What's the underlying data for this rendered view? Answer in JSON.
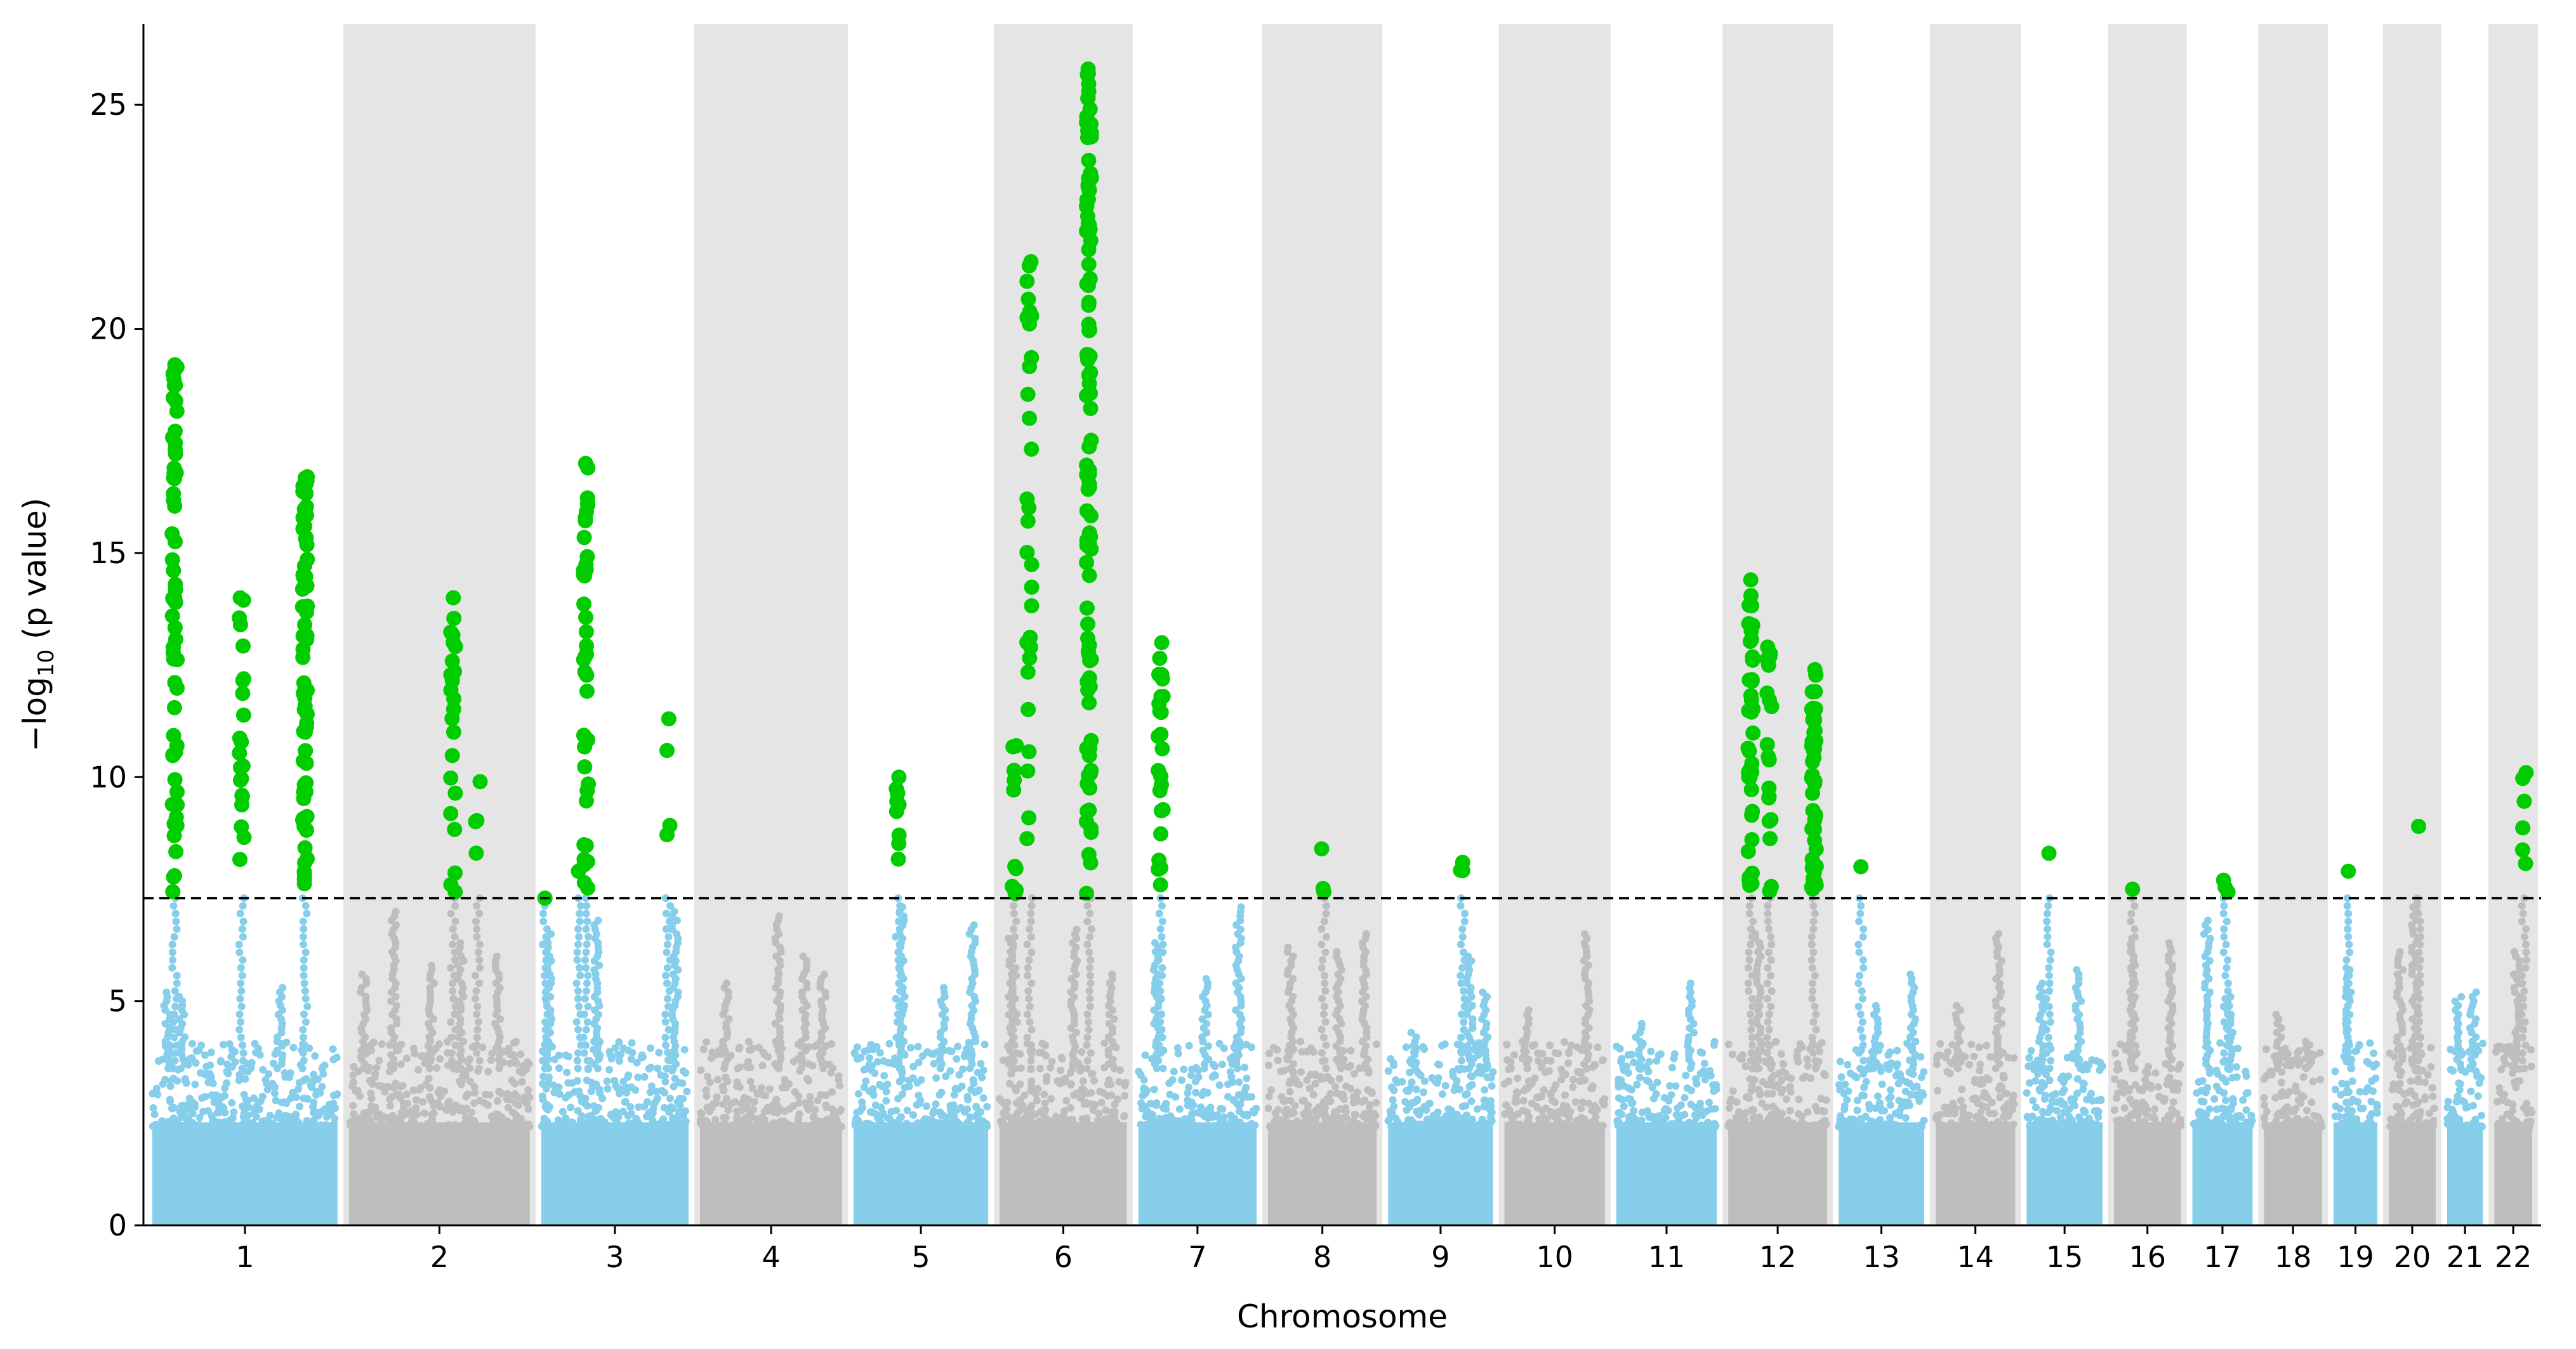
{
  "chart_data": {
    "type": "scatter",
    "subtype": "manhattan",
    "xlabel": "Chromosome",
    "ylabel_prefix": "−log",
    "ylabel_sub": "10",
    "ylabel_suffix": " (p value)",
    "ylim": [
      0,
      26.8
    ],
    "yticks": [
      0,
      5,
      10,
      15,
      20,
      25
    ],
    "significance_threshold": 7.3,
    "grid": false,
    "legend": "none",
    "colors": {
      "odd_chromosome_points": "#87ceeb",
      "even_chromosome_points": "#bebebe",
      "significant_points": "#00cc00",
      "shaded_band": "#e5e5e5",
      "threshold_line": "#000000"
    },
    "chromosomes": [
      {
        "label": "1",
        "length": 249,
        "shaded": false
      },
      {
        "label": "2",
        "length": 243,
        "shaded": true
      },
      {
        "label": "3",
        "length": 198,
        "shaded": false
      },
      {
        "label": "4",
        "length": 191,
        "shaded": true
      },
      {
        "label": "5",
        "length": 181,
        "shaded": false
      },
      {
        "label": "6",
        "length": 171,
        "shaded": true
      },
      {
        "label": "7",
        "length": 159,
        "shaded": false
      },
      {
        "label": "8",
        "length": 146,
        "shaded": true
      },
      {
        "label": "9",
        "length": 141,
        "shaded": false
      },
      {
        "label": "10",
        "length": 135,
        "shaded": true
      },
      {
        "label": "11",
        "length": 135,
        "shaded": false
      },
      {
        "label": "12",
        "length": 133,
        "shaded": true
      },
      {
        "label": "13",
        "length": 115,
        "shaded": false
      },
      {
        "label": "14",
        "length": 107,
        "shaded": true
      },
      {
        "label": "15",
        "length": 102,
        "shaded": false
      },
      {
        "label": "16",
        "length": 90,
        "shaded": true
      },
      {
        "label": "17",
        "length": 81,
        "shaded": false
      },
      {
        "label": "18",
        "length": 78,
        "shaded": true
      },
      {
        "label": "19",
        "length": 59,
        "shaded": false
      },
      {
        "label": "20",
        "length": 63,
        "shaded": true
      },
      {
        "label": "21",
        "length": 48,
        "shaded": false
      },
      {
        "label": "22",
        "length": 51,
        "shaded": true
      }
    ],
    "background_peaks": [
      {
        "chr": "1",
        "pos": 20,
        "y": 5.2
      },
      {
        "chr": "1",
        "pos": 40,
        "y": 5.1
      },
      {
        "chr": "1",
        "pos": 172,
        "y": 5.3
      },
      {
        "chr": "2",
        "pos": 20,
        "y": 5.6
      },
      {
        "chr": "2",
        "pos": 60,
        "y": 7.0
      },
      {
        "chr": "2",
        "pos": 110,
        "y": 5.8
      },
      {
        "chr": "2",
        "pos": 150,
        "y": 6.3
      },
      {
        "chr": "2",
        "pos": 200,
        "y": 6.0
      },
      {
        "chr": "3",
        "pos": 10,
        "y": 6.5
      },
      {
        "chr": "3",
        "pos": 75,
        "y": 6.8
      },
      {
        "chr": "3",
        "pos": 180,
        "y": 7.0
      },
      {
        "chr": "4",
        "pos": 35,
        "y": 5.4
      },
      {
        "chr": "4",
        "pos": 105,
        "y": 6.9
      },
      {
        "chr": "4",
        "pos": 140,
        "y": 6.0
      },
      {
        "chr": "4",
        "pos": 165,
        "y": 5.6
      },
      {
        "chr": "5",
        "pos": 65,
        "y": 7.1
      },
      {
        "chr": "5",
        "pos": 160,
        "y": 6.7
      },
      {
        "chr": "5",
        "pos": 120,
        "y": 5.3
      },
      {
        "chr": "6",
        "pos": 15,
        "y": 6.4
      },
      {
        "chr": "6",
        "pos": 100,
        "y": 6.6
      },
      {
        "chr": "6",
        "pos": 150,
        "y": 5.6
      },
      {
        "chr": "7",
        "pos": 25,
        "y": 6.3
      },
      {
        "chr": "7",
        "pos": 90,
        "y": 5.5
      },
      {
        "chr": "7",
        "pos": 135,
        "y": 7.1
      },
      {
        "chr": "8",
        "pos": 30,
        "y": 6.2
      },
      {
        "chr": "8",
        "pos": 95,
        "y": 6.1
      },
      {
        "chr": "8",
        "pos": 130,
        "y": 6.5
      },
      {
        "chr": "9",
        "pos": 35,
        "y": 4.3
      },
      {
        "chr": "9",
        "pos": 110,
        "y": 6.0
      },
      {
        "chr": "9",
        "pos": 130,
        "y": 5.2
      },
      {
        "chr": "10",
        "pos": 30,
        "y": 4.8
      },
      {
        "chr": "10",
        "pos": 110,
        "y": 6.5
      },
      {
        "chr": "11",
        "pos": 30,
        "y": 4.5
      },
      {
        "chr": "11",
        "pos": 100,
        "y": 5.4
      },
      {
        "chr": "12",
        "pos": 40,
        "y": 6.5
      },
      {
        "chr": "13",
        "pos": 50,
        "y": 4.9
      },
      {
        "chr": "13",
        "pos": 100,
        "y": 5.6
      },
      {
        "chr": "14",
        "pos": 30,
        "y": 4.9
      },
      {
        "chr": "14",
        "pos": 85,
        "y": 6.5
      },
      {
        "chr": "15",
        "pos": 20,
        "y": 5.4
      },
      {
        "chr": "15",
        "pos": 70,
        "y": 5.7
      },
      {
        "chr": "16",
        "pos": 25,
        "y": 6.4
      },
      {
        "chr": "16",
        "pos": 75,
        "y": 6.3
      },
      {
        "chr": "17",
        "pos": 20,
        "y": 6.8
      },
      {
        "chr": "17",
        "pos": 50,
        "y": 5.1
      },
      {
        "chr": "18",
        "pos": 20,
        "y": 4.7
      },
      {
        "chr": "18",
        "pos": 60,
        "y": 4.1
      },
      {
        "chr": "19",
        "pos": 20,
        "y": 5.7
      },
      {
        "chr": "20",
        "pos": 15,
        "y": 6.1
      },
      {
        "chr": "20",
        "pos": 35,
        "y": 7.2
      },
      {
        "chr": "21",
        "pos": 15,
        "y": 5.1
      },
      {
        "chr": "21",
        "pos": 35,
        "y": 5.2
      },
      {
        "chr": "22",
        "pos": 30,
        "y": 6.1
      }
    ],
    "significant_loci": [
      {
        "chr": "1",
        "pos": 30,
        "ymax": 19.2,
        "count": 60
      },
      {
        "chr": "1",
        "pos": 120,
        "ymax": 14.0,
        "count": 22
      },
      {
        "chr": "1",
        "pos": 205,
        "ymax": 16.7,
        "count": 70
      },
      {
        "chr": "2",
        "pos": 140,
        "ymax": 14.0,
        "count": 24
      },
      {
        "chr": "2",
        "pos": 173,
        "ymax": 9.9,
        "count": 4
      },
      {
        "chr": "3",
        "pos": 5,
        "ymax": 7.3,
        "count": 1
      },
      {
        "chr": "3",
        "pos": 50,
        "ymax": 7.9,
        "count": 1
      },
      {
        "chr": "3",
        "pos": 60,
        "ymax": 17.0,
        "count": 40
      },
      {
        "chr": "3",
        "pos": 170,
        "ymax": 11.3,
        "count": 4
      },
      {
        "chr": "5",
        "pos": 60,
        "ymax": 10.0,
        "count": 10
      },
      {
        "chr": "6",
        "pos": 20,
        "ymax": 10.7,
        "count": 10
      },
      {
        "chr": "6",
        "pos": 40,
        "ymax": 21.5,
        "count": 30
      },
      {
        "chr": "6",
        "pos": 120,
        "ymax": 25.8,
        "count": 110
      },
      {
        "chr": "7",
        "pos": 30,
        "ymax": 13.0,
        "count": 24
      },
      {
        "chr": "8",
        "pos": 75,
        "ymax": 8.4,
        "count": 3
      },
      {
        "chr": "9",
        "pos": 100,
        "ymax": 8.1,
        "count": 3
      },
      {
        "chr": "12",
        "pos": 30,
        "ymax": 14.4,
        "count": 40
      },
      {
        "chr": "12",
        "pos": 55,
        "ymax": 12.9,
        "count": 20
      },
      {
        "chr": "12",
        "pos": 115,
        "ymax": 12.4,
        "count": 45
      },
      {
        "chr": "13",
        "pos": 30,
        "ymax": 8.0,
        "count": 1
      },
      {
        "chr": "15",
        "pos": 30,
        "ymax": 8.3,
        "count": 1
      },
      {
        "chr": "16",
        "pos": 25,
        "ymax": 7.5,
        "count": 1
      },
      {
        "chr": "17",
        "pos": 45,
        "ymax": 7.7,
        "count": 3
      },
      {
        "chr": "19",
        "pos": 20,
        "ymax": 7.9,
        "count": 1
      },
      {
        "chr": "20",
        "pos": 40,
        "ymax": 8.9,
        "count": 1
      },
      {
        "chr": "22",
        "pos": 40,
        "ymax": 10.1,
        "count": 6
      }
    ]
  }
}
